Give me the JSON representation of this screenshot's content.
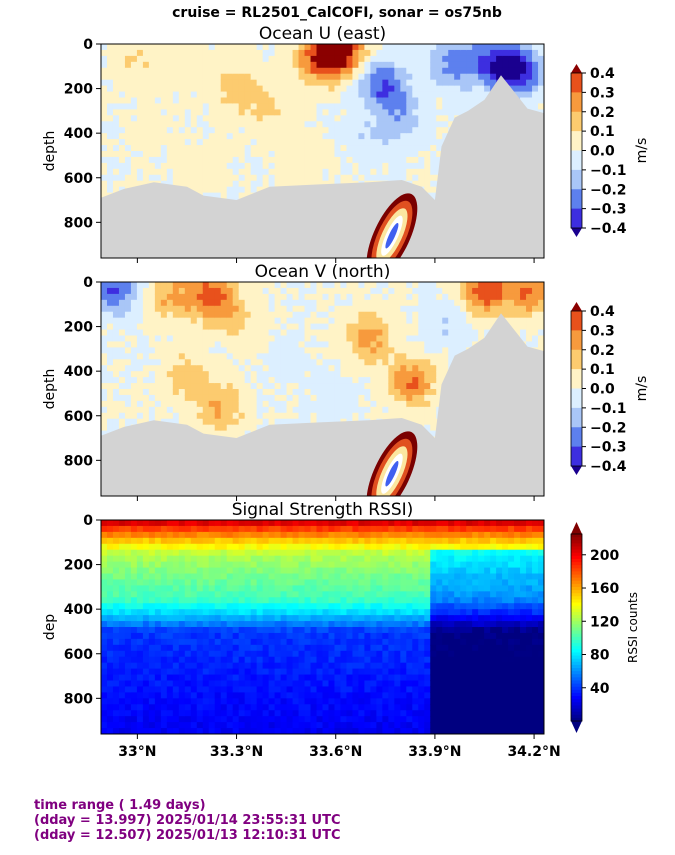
{
  "suptitle": "cruise = RL2501_CalCOFI,  sonar = os75nb",
  "footer": {
    "line1": "time range ( 1.49 days)",
    "line2": "(dday = 13.997) 2025/01/14 23:55:31 UTC",
    "line3": "(dday = 12.507) 2025/01/13 12:10:31 UTC"
  },
  "colors": {
    "land_mask": "#d3d3d3",
    "footer_text": "#800080"
  },
  "chart_data": [
    {
      "type": "heatmap",
      "title": "Ocean U (east)",
      "ylabel": "depth",
      "ylim": [
        960,
        0
      ],
      "yticks": [
        0,
        200,
        400,
        600,
        800
      ],
      "xlim": [
        32.89,
        34.23
      ],
      "xticks": [
        33.0,
        33.3,
        33.6,
        33.9,
        34.2
      ],
      "xticklabels": [],
      "colorbar": {
        "label": "m/s",
        "ticks": [
          -0.4,
          -0.3,
          -0.2,
          -0.1,
          0.0,
          0.1,
          0.2,
          0.3,
          0.4
        ],
        "ticklabels": [
          "−0.4",
          "−0.3",
          "−0.2",
          "−0.1",
          "0.0",
          "0.1",
          "0.2",
          "0.3",
          "0.4"
        ],
        "vmin": -0.4,
        "vmax": 0.4
      },
      "bottom_depth_profile": {
        "lat": [
          32.89,
          32.96,
          33.05,
          33.15,
          33.2,
          33.3,
          33.4,
          33.55,
          33.7,
          33.8,
          33.86,
          33.9,
          33.92,
          33.96,
          34.0,
          34.05,
          34.1,
          34.18,
          34.23
        ],
        "depth": [
          690,
          650,
          620,
          640,
          680,
          700,
          640,
          630,
          620,
          610,
          640,
          700,
          460,
          330,
          300,
          250,
          140,
          290,
          310
        ]
      },
      "anomalies": [
        {
          "lat": 33.0,
          "depth": 80,
          "value": 0.1
        },
        {
          "lat": 33.15,
          "depth": 120,
          "value": 0.05
        },
        {
          "lat": 33.3,
          "depth": 200,
          "value": 0.15
        },
        {
          "lat": 33.4,
          "depth": 300,
          "value": 0.12
        },
        {
          "lat": 33.55,
          "depth": 60,
          "value": 0.35
        },
        {
          "lat": 33.62,
          "depth": 30,
          "value": 0.4
        },
        {
          "lat": 33.74,
          "depth": 180,
          "value": -0.3
        },
        {
          "lat": 33.8,
          "depth": 300,
          "value": -0.15
        },
        {
          "lat": 33.96,
          "depth": 80,
          "value": -0.25
        },
        {
          "lat": 34.08,
          "depth": 90,
          "value": -0.3
        },
        {
          "lat": 34.15,
          "depth": 120,
          "value": -0.4
        },
        {
          "lat": 33.72,
          "depth": 420,
          "value": -0.1
        },
        {
          "lat": 33.5,
          "depth": 520,
          "value": 0.06
        },
        {
          "lat": 33.2,
          "depth": 560,
          "value": 0.08
        },
        {
          "lat": 33.05,
          "depth": 400,
          "value": 0.04
        }
      ]
    },
    {
      "type": "heatmap",
      "title": "Ocean V (north)",
      "ylabel": "depth",
      "ylim": [
        960,
        0
      ],
      "yticks": [
        0,
        200,
        400,
        600,
        800
      ],
      "xlim": [
        32.89,
        34.23
      ],
      "xticks": [
        33.0,
        33.3,
        33.6,
        33.9,
        34.2
      ],
      "xticklabels": [],
      "colorbar": {
        "label": "m/s",
        "ticks": [
          -0.4,
          -0.3,
          -0.2,
          -0.1,
          0.0,
          0.1,
          0.2,
          0.3,
          0.4
        ],
        "ticklabels": [
          "−0.4",
          "−0.3",
          "−0.2",
          "−0.1",
          "0.0",
          "0.1",
          "0.2",
          "0.3",
          "0.4"
        ],
        "vmin": -0.4,
        "vmax": 0.4
      },
      "bottom_depth_profile": {
        "lat": [
          32.89,
          32.96,
          33.05,
          33.15,
          33.2,
          33.3,
          33.4,
          33.55,
          33.7,
          33.8,
          33.86,
          33.9,
          33.92,
          33.96,
          34.0,
          34.05,
          34.1,
          34.18,
          34.23
        ],
        "depth": [
          690,
          650,
          620,
          640,
          680,
          700,
          640,
          630,
          620,
          610,
          640,
          700,
          460,
          330,
          300,
          250,
          140,
          290,
          310
        ]
      },
      "anomalies": [
        {
          "lat": 33.1,
          "depth": 60,
          "value": 0.2
        },
        {
          "lat": 33.22,
          "depth": 60,
          "value": 0.35
        },
        {
          "lat": 33.3,
          "depth": 150,
          "value": 0.12
        },
        {
          "lat": 33.15,
          "depth": 420,
          "value": 0.15
        },
        {
          "lat": 33.25,
          "depth": 560,
          "value": 0.2
        },
        {
          "lat": 33.7,
          "depth": 250,
          "value": 0.25
        },
        {
          "lat": 33.83,
          "depth": 450,
          "value": 0.3
        },
        {
          "lat": 33.93,
          "depth": 180,
          "value": -0.1
        },
        {
          "lat": 34.05,
          "depth": 40,
          "value": 0.35
        },
        {
          "lat": 34.18,
          "depth": 40,
          "value": 0.3
        },
        {
          "lat": 32.93,
          "depth": 30,
          "value": -0.3
        },
        {
          "lat": 33.45,
          "depth": 350,
          "value": -0.05
        },
        {
          "lat": 33.6,
          "depth": 500,
          "value": -0.06
        }
      ]
    },
    {
      "type": "heatmap",
      "title": "Signal Strength RSSI)",
      "ylabel": "dep",
      "ylim": [
        960,
        0
      ],
      "yticks": [
        0,
        200,
        400,
        600,
        800
      ],
      "xlim": [
        32.89,
        34.23
      ],
      "xticks": [
        33.0,
        33.3,
        33.6,
        33.9,
        34.2
      ],
      "xticklabels": [
        "33°N",
        "33.3°N",
        "33.6°N",
        "33.9°N",
        "34.2°N"
      ],
      "colorbar": {
        "label": "RSSI counts",
        "ticks": [
          40,
          80,
          120,
          160,
          200
        ],
        "ticklabels": [
          "40",
          "80",
          "120",
          "160",
          "200"
        ],
        "vmin": 0,
        "vmax": 225
      },
      "profile_typical": {
        "depth": [
          0,
          30,
          80,
          150,
          250,
          350,
          420,
          500,
          960
        ],
        "rssi": [
          215,
          190,
          160,
          125,
          110,
          100,
          75,
          40,
          25
        ]
      }
    }
  ]
}
